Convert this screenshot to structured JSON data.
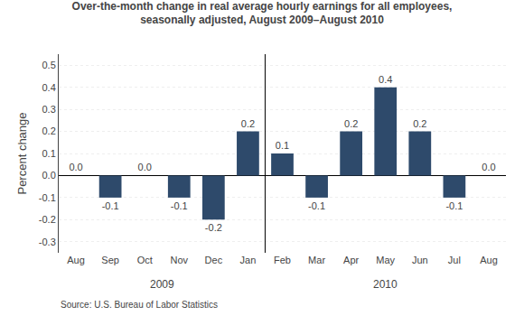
{
  "chart_data": {
    "type": "bar",
    "title": "Over-the-month change in real average hourly earnings for all employees,\nseasonally adjusted, August 2009–August 2010",
    "categories": [
      "Aug",
      "Sep",
      "Oct",
      "Nov",
      "Dec",
      "Jan",
      "Feb",
      "Mar",
      "Apr",
      "May",
      "Jun",
      "Jul",
      "Aug"
    ],
    "values": [
      0.0,
      -0.1,
      0.0,
      -0.1,
      -0.2,
      0.2,
      0.1,
      -0.1,
      0.2,
      0.4,
      0.2,
      -0.1,
      0.0
    ],
    "value_labels": [
      "0.0",
      "-0.1",
      "0.0",
      "-0.1",
      "-0.2",
      "0.2",
      "0.1",
      "-0.1",
      "0.2",
      "0.4",
      "0.2",
      "-0.1",
      "0.0"
    ],
    "data_labels": true,
    "color": "#2E4A6B",
    "ylabel": "Percent change",
    "ylim": [
      -0.35,
      0.55
    ],
    "yticks": [
      -0.3,
      -0.2,
      -0.1,
      {
        "value": 0.0,
        "label": "0.0"
      },
      0.1,
      0.2,
      0.3,
      0.4,
      0.5
    ],
    "grid": true,
    "annotations": [
      {
        "text": "2009",
        "x": 2.5
      },
      {
        "text": "2010",
        "x": 9.0
      }
    ],
    "source": "Source: U.S. Bureau of Labor Statistics"
  }
}
